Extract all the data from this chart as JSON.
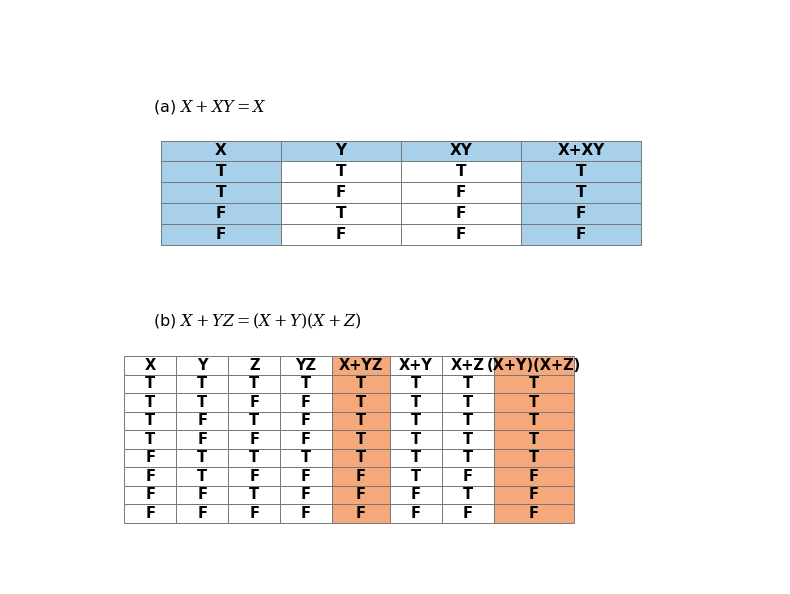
{
  "title_a": "(a) $\\mathit{X + XY = X}$",
  "title_b": "(b) $\\mathit{X + YZ = (X + Y)(X + Z)}$",
  "table_a_headers": [
    "X",
    "Y",
    "XY",
    "X+XY"
  ],
  "table_a_data": [
    [
      "T",
      "T",
      "T",
      "T"
    ],
    [
      "T",
      "F",
      "F",
      "T"
    ],
    [
      "F",
      "T",
      "F",
      "F"
    ],
    [
      "F",
      "F",
      "F",
      "F"
    ]
  ],
  "table_a_col_colors_data": [
    "#a8d0eb",
    "#ffffff",
    "#ffffff",
    "#a8d0eb"
  ],
  "table_a_header_colors": [
    "#a8d0eb",
    "#a8d0eb",
    "#a8d0eb",
    "#a8d0eb"
  ],
  "table_b_headers": [
    "X",
    "Y",
    "Z",
    "YZ",
    "X+YZ",
    "X+Y",
    "X+Z",
    "(X+Y)(X+Z)"
  ],
  "table_b_data": [
    [
      "T",
      "T",
      "T",
      "T",
      "T",
      "T",
      "T",
      "T"
    ],
    [
      "T",
      "T",
      "F",
      "F",
      "T",
      "T",
      "T",
      "T"
    ],
    [
      "T",
      "F",
      "T",
      "F",
      "T",
      "T",
      "T",
      "T"
    ],
    [
      "T",
      "F",
      "F",
      "F",
      "T",
      "T",
      "T",
      "T"
    ],
    [
      "F",
      "T",
      "T",
      "T",
      "T",
      "T",
      "T",
      "T"
    ],
    [
      "F",
      "T",
      "F",
      "F",
      "F",
      "T",
      "F",
      "F"
    ],
    [
      "F",
      "F",
      "T",
      "F",
      "F",
      "F",
      "T",
      "F"
    ],
    [
      "F",
      "F",
      "F",
      "F",
      "F",
      "F",
      "F",
      "F"
    ]
  ],
  "table_b_col_colors_data": [
    "#ffffff",
    "#ffffff",
    "#ffffff",
    "#ffffff",
    "#f5a97a",
    "#ffffff",
    "#ffffff",
    "#f5a97a"
  ],
  "table_b_header_colors": [
    "#ffffff",
    "#ffffff",
    "#ffffff",
    "#ffffff",
    "#f5a97a",
    "#ffffff",
    "#ffffff",
    "#f5a97a"
  ],
  "light_blue": "#a8d0eb",
  "light_orange": "#f5a97a",
  "white": "#ffffff",
  "bg_color": "#ffffff",
  "edge_color": "#777777"
}
